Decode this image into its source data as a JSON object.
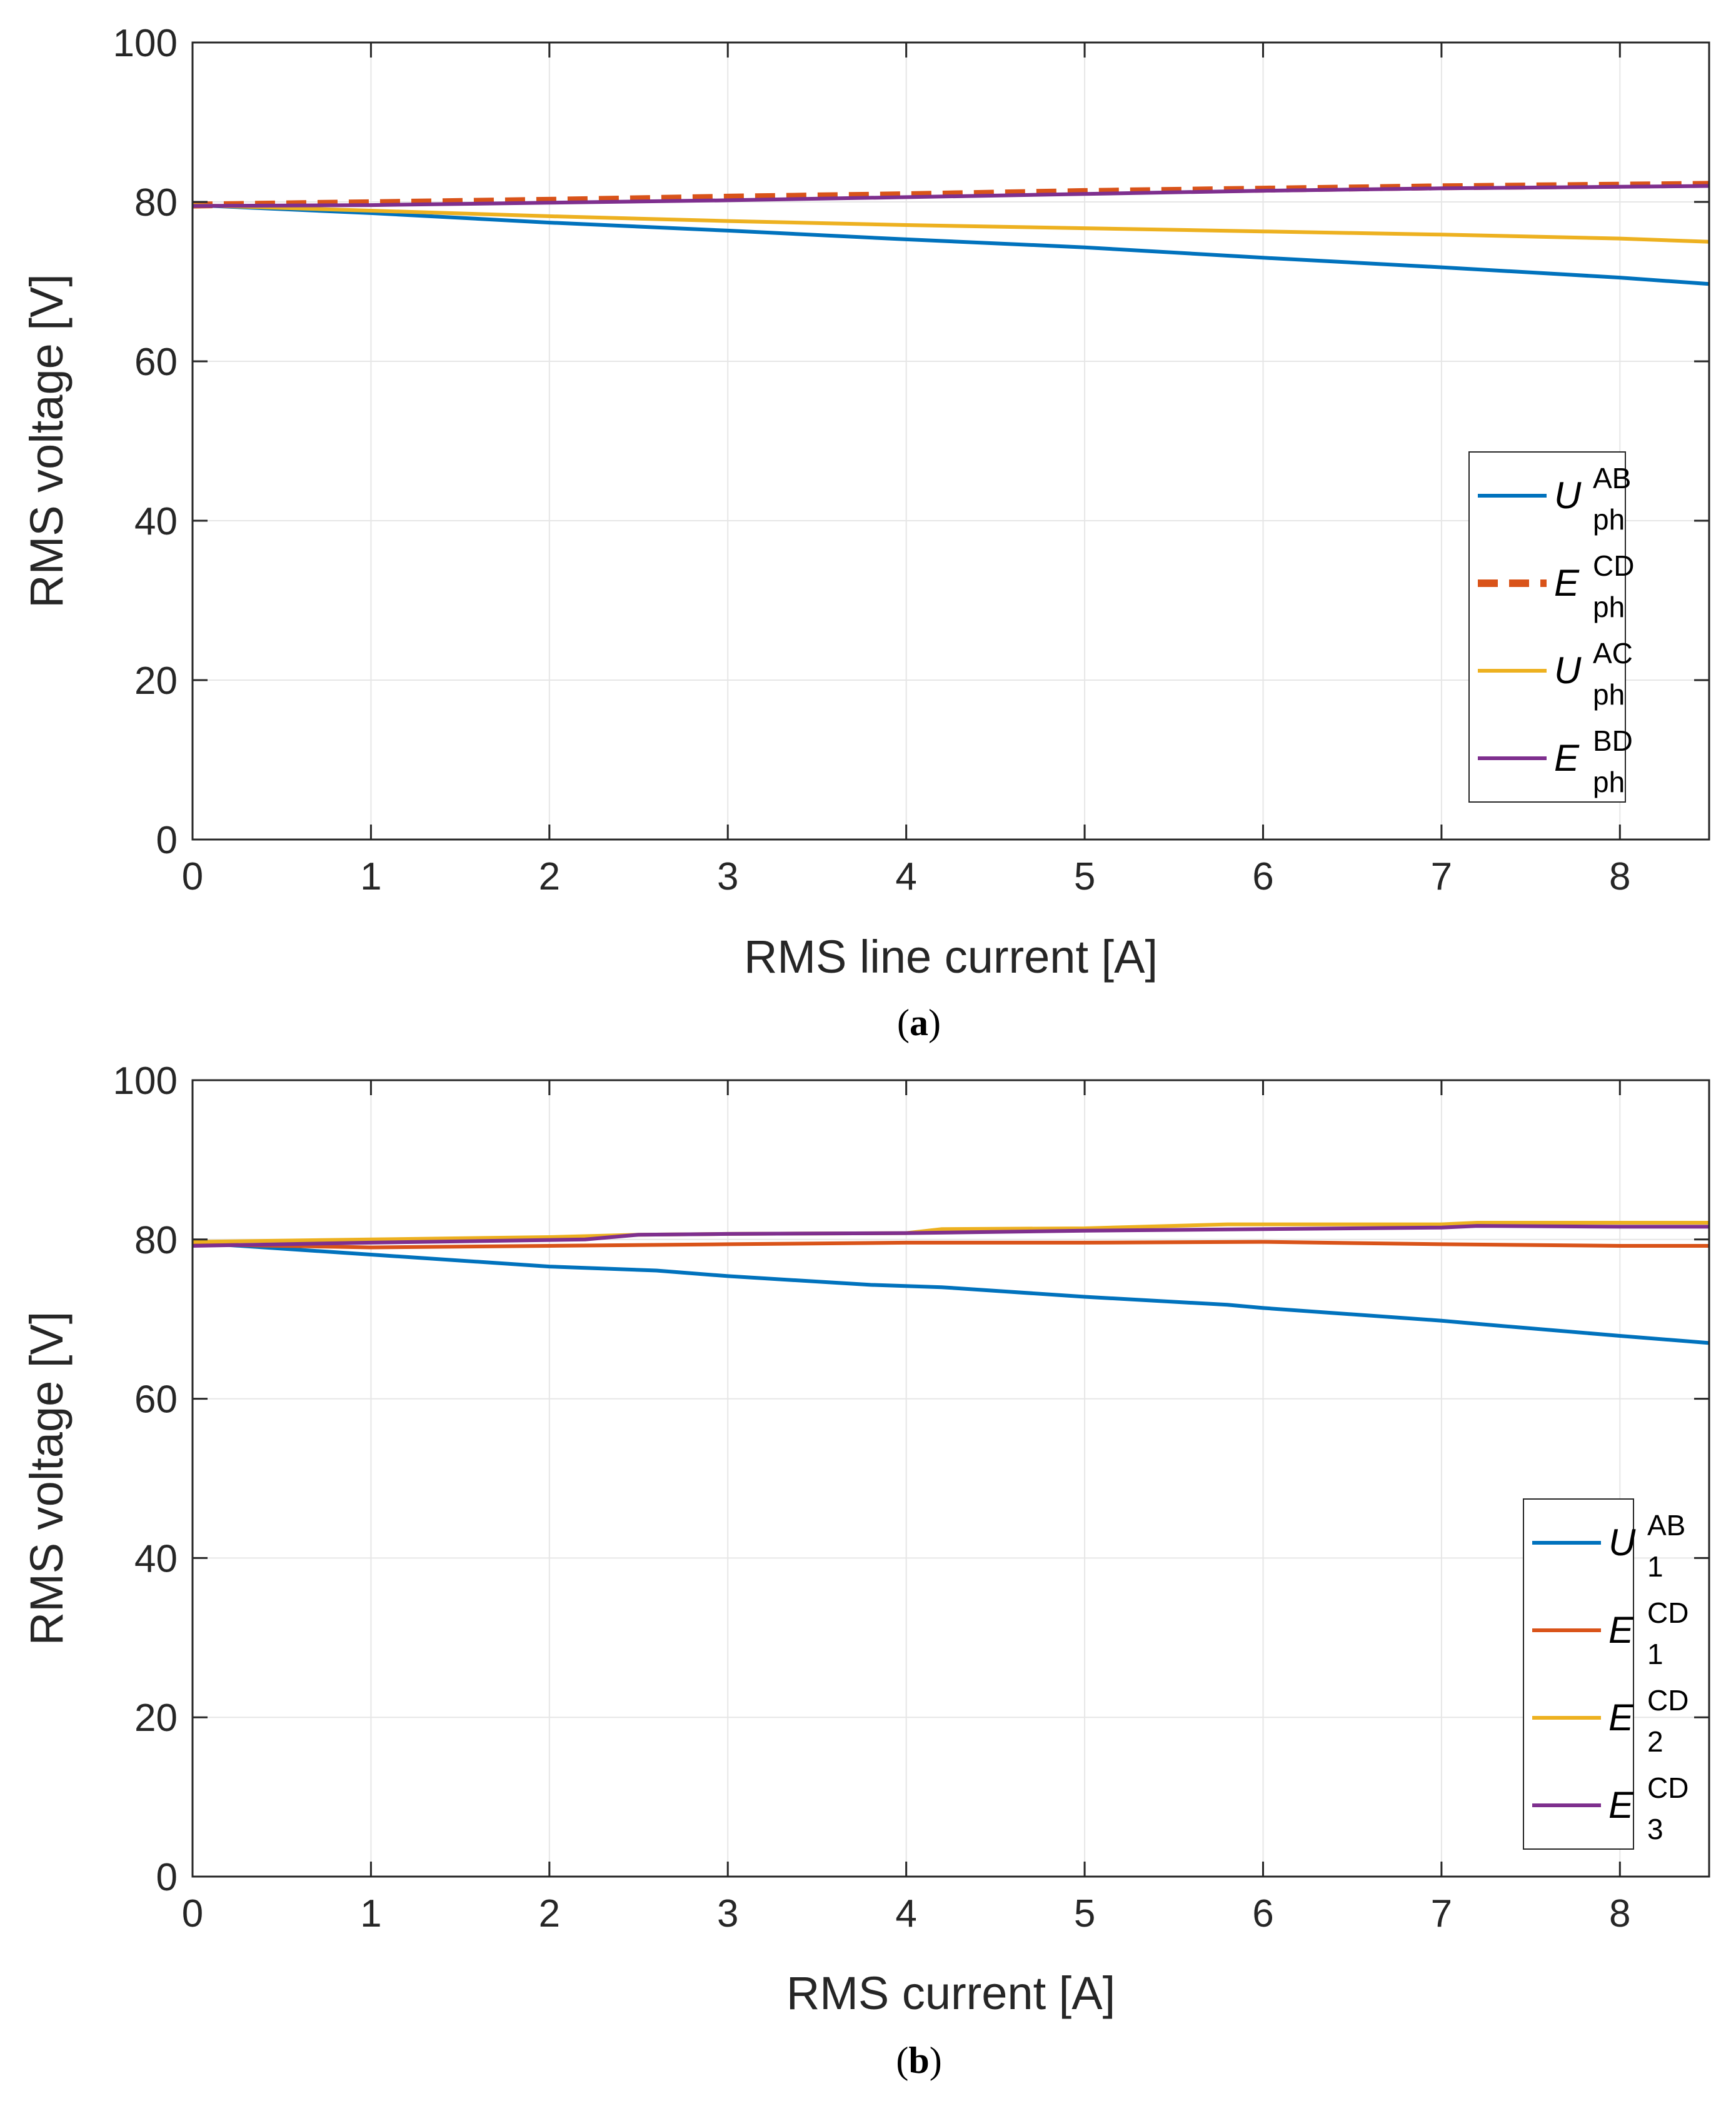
{
  "chart_data": [
    {
      "id": "a",
      "type": "line",
      "caption_letter": "a",
      "xlabel": "RMS line current  [A]",
      "ylabel": "RMS voltage [V]",
      "xlim": [
        0,
        8.5
      ],
      "ylim": [
        0,
        100
      ],
      "xticks": [
        "0",
        "1",
        "2",
        "3",
        "4",
        "5",
        "6",
        "7",
        "8"
      ],
      "yticks": [
        "0",
        "20",
        "40",
        "60",
        "80",
        "100"
      ],
      "grid": true,
      "legend_position": "right-middle",
      "series": [
        {
          "symbol": "U",
          "sup": "AB",
          "sub": "ph",
          "color": "#0072BD",
          "style": "solid",
          "x": [
            0,
            1,
            2,
            3,
            4,
            5,
            6,
            7,
            8,
            8.5
          ],
          "y": [
            79.6,
            78.6,
            77.4,
            76.4,
            75.3,
            74.3,
            73.0,
            71.8,
            70.5,
            69.7
          ]
        },
        {
          "symbol": "E",
          "sup": "CD",
          "sub": "ph",
          "color": "#D95319",
          "style": "dashed",
          "x": [
            0,
            1,
            2,
            3,
            4,
            5,
            6,
            7,
            8,
            8.5
          ],
          "y": [
            79.6,
            79.9,
            80.2,
            80.6,
            80.9,
            81.3,
            81.6,
            81.9,
            82.1,
            82.2
          ]
        },
        {
          "symbol": "U",
          "sup": "AC",
          "sub": "ph",
          "color": "#EDB120",
          "style": "solid",
          "x": [
            0,
            1,
            2,
            3,
            4,
            5,
            6,
            7,
            8,
            8.5
          ],
          "y": [
            79.6,
            78.9,
            78.2,
            77.6,
            77.1,
            76.7,
            76.3,
            75.9,
            75.4,
            75.0
          ]
        },
        {
          "symbol": "E",
          "sup": "BD",
          "sub": "ph",
          "color": "#7E2F8E",
          "style": "solid",
          "x": [
            0,
            1,
            2,
            3,
            4,
            5,
            6,
            7,
            8,
            8.5
          ],
          "y": [
            79.5,
            79.6,
            79.9,
            80.2,
            80.6,
            81.0,
            81.4,
            81.7,
            81.9,
            82.0
          ]
        }
      ]
    },
    {
      "id": "b",
      "type": "line",
      "caption_letter": "b",
      "xlabel": "RMS current  [A]",
      "ylabel": "RMS voltage [V]",
      "xlim": [
        0,
        8.5
      ],
      "ylim": [
        0,
        100
      ],
      "xticks": [
        "0",
        "1",
        "2",
        "3",
        "4",
        "5",
        "6",
        "7",
        "8"
      ],
      "yticks": [
        "0",
        "20",
        "40",
        "60",
        "80",
        "100"
      ],
      "grid": true,
      "legend_position": "bottom-right",
      "series": [
        {
          "symbol": "U",
          "sup": "AB",
          "sub": "1",
          "color": "#0072BD",
          "style": "solid",
          "x": [
            0,
            1,
            2,
            2.6,
            3,
            3.8,
            4.2,
            5,
            5.8,
            6,
            7,
            7.2,
            8,
            8.5
          ],
          "y": [
            79.6,
            78.1,
            76.6,
            76.1,
            75.4,
            74.3,
            74.0,
            72.8,
            71.8,
            71.4,
            69.8,
            69.4,
            67.9,
            67.0
          ]
        },
        {
          "symbol": "E",
          "sup": "CD",
          "sub": "1",
          "color": "#D95319",
          "style": "solid",
          "x": [
            0,
            1,
            2,
            3,
            4,
            5,
            6,
            7,
            8,
            8.5
          ],
          "y": [
            79.4,
            79.0,
            79.2,
            79.4,
            79.6,
            79.6,
            79.7,
            79.4,
            79.2,
            79.2
          ]
        },
        {
          "symbol": "E",
          "sup": "CD",
          "sub": "2",
          "color": "#EDB120",
          "style": "solid",
          "x": [
            0,
            1,
            2,
            2.5,
            3,
            4,
            4.2,
            5,
            5.8,
            6,
            7,
            7.2,
            8,
            8.5
          ],
          "y": [
            79.7,
            80.0,
            80.3,
            80.6,
            80.7,
            80.8,
            81.3,
            81.4,
            81.9,
            81.9,
            81.9,
            82.1,
            82.1,
            82.1
          ]
        },
        {
          "symbol": "E",
          "sup": "CD",
          "sub": "3",
          "color": "#7E2F8E",
          "style": "solid",
          "x": [
            0,
            1,
            2.2,
            2.5,
            3,
            4,
            5,
            6,
            7,
            7.2,
            8,
            8.5
          ],
          "y": [
            79.2,
            79.6,
            80.0,
            80.6,
            80.7,
            80.8,
            81.1,
            81.3,
            81.5,
            81.7,
            81.6,
            81.6
          ]
        }
      ]
    }
  ]
}
